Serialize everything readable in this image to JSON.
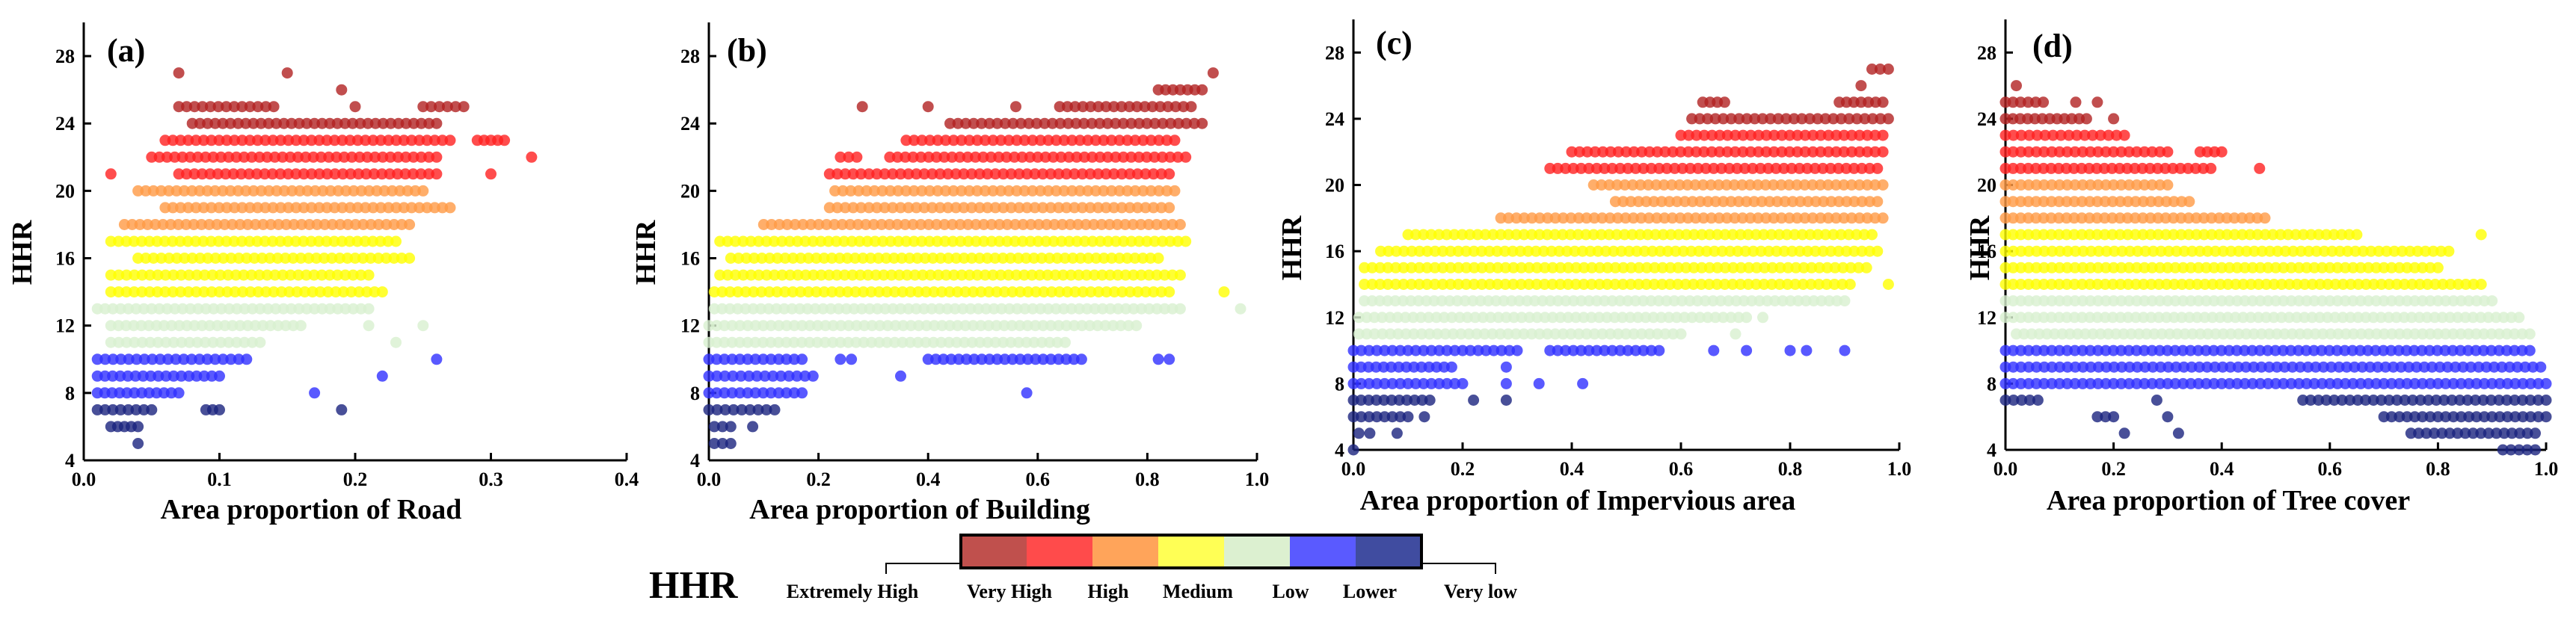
{
  "chart_data": [
    {
      "panel": "(a)",
      "type": "scatter",
      "xlabel": "Area proportion of Road",
      "ylabel": "HHR",
      "xlim": [
        0.0,
        0.4
      ],
      "ylim": [
        4,
        30
      ],
      "xticks": [
        "0.0",
        "0.1",
        "0.2",
        "0.3",
        "0.4"
      ],
      "yticks": [
        "4",
        "8",
        "12",
        "16",
        "20",
        "24",
        "28"
      ],
      "rows": [
        {
          "y": 27,
          "ranges": [
            [
              0.07,
              0.07
            ],
            [
              0.15,
              0.15
            ]
          ]
        },
        {
          "y": 26,
          "ranges": [
            [
              0.19,
              0.19
            ]
          ]
        },
        {
          "y": 25,
          "ranges": [
            [
              0.07,
              0.14
            ],
            [
              0.2,
              0.2
            ],
            [
              0.25,
              0.28
            ]
          ]
        },
        {
          "y": 24,
          "ranges": [
            [
              0.08,
              0.26
            ]
          ]
        },
        {
          "y": 23,
          "ranges": [
            [
              0.06,
              0.27
            ],
            [
              0.29,
              0.31
            ]
          ]
        },
        {
          "y": 22,
          "ranges": [
            [
              0.05,
              0.26
            ],
            [
              0.33,
              0.33
            ]
          ]
        },
        {
          "y": 21,
          "ranges": [
            [
              0.02,
              0.02
            ],
            [
              0.07,
              0.26
            ],
            [
              0.3,
              0.3
            ]
          ]
        },
        {
          "y": 20,
          "ranges": [
            [
              0.04,
              0.25
            ]
          ]
        },
        {
          "y": 19,
          "ranges": [
            [
              0.06,
              0.27
            ]
          ]
        },
        {
          "y": 18,
          "ranges": [
            [
              0.03,
              0.24
            ]
          ]
        },
        {
          "y": 17,
          "ranges": [
            [
              0.02,
              0.23
            ]
          ]
        },
        {
          "y": 16,
          "ranges": [
            [
              0.04,
              0.24
            ]
          ]
        },
        {
          "y": 15,
          "ranges": [
            [
              0.02,
              0.21
            ]
          ]
        },
        {
          "y": 14,
          "ranges": [
            [
              0.02,
              0.22
            ]
          ]
        },
        {
          "y": 13,
          "ranges": [
            [
              0.01,
              0.21
            ]
          ]
        },
        {
          "y": 12,
          "ranges": [
            [
              0.02,
              0.16
            ],
            [
              0.21,
              0.21
            ],
            [
              0.25,
              0.25
            ]
          ]
        },
        {
          "y": 11,
          "ranges": [
            [
              0.02,
              0.13
            ],
            [
              0.23,
              0.23
            ]
          ]
        },
        {
          "y": 10,
          "ranges": [
            [
              0.01,
              0.12
            ],
            [
              0.26,
              0.26
            ]
          ]
        },
        {
          "y": 9,
          "ranges": [
            [
              0.01,
              0.1
            ],
            [
              0.22,
              0.22
            ]
          ]
        },
        {
          "y": 8,
          "ranges": [
            [
              0.01,
              0.07
            ],
            [
              0.17,
              0.17
            ]
          ]
        },
        {
          "y": 7,
          "ranges": [
            [
              0.01,
              0.05
            ],
            [
              0.09,
              0.1
            ],
            [
              0.19,
              0.19
            ]
          ]
        },
        {
          "y": 6,
          "ranges": [
            [
              0.02,
              0.04
            ]
          ]
        },
        {
          "y": 5,
          "ranges": [
            [
              0.04,
              0.04
            ]
          ]
        }
      ]
    },
    {
      "panel": "(b)",
      "type": "scatter",
      "xlabel": "Area proportion of Building",
      "ylabel": "HHR",
      "xlim": [
        0.0,
        1.0
      ],
      "ylim": [
        4,
        30
      ],
      "xticks": [
        "0.0",
        "0.2",
        "0.4",
        "0.6",
        "0.8",
        "1.0"
      ],
      "yticks": [
        "4",
        "8",
        "12",
        "16",
        "20",
        "24",
        "28"
      ],
      "rows": [
        {
          "y": 27,
          "ranges": [
            [
              0.92,
              0.92
            ]
          ]
        },
        {
          "y": 26,
          "ranges": [
            [
              0.82,
              0.9
            ]
          ]
        },
        {
          "y": 25,
          "ranges": [
            [
              0.28,
              0.28
            ],
            [
              0.4,
              0.4
            ],
            [
              0.56,
              0.56
            ],
            [
              0.64,
              0.88
            ]
          ]
        },
        {
          "y": 24,
          "ranges": [
            [
              0.44,
              0.9
            ]
          ]
        },
        {
          "y": 23,
          "ranges": [
            [
              0.36,
              0.85
            ]
          ]
        },
        {
          "y": 22,
          "ranges": [
            [
              0.24,
              0.27
            ],
            [
              0.33,
              0.87
            ]
          ]
        },
        {
          "y": 21,
          "ranges": [
            [
              0.22,
              0.84
            ]
          ]
        },
        {
          "y": 20,
          "ranges": [
            [
              0.23,
              0.85
            ]
          ]
        },
        {
          "y": 19,
          "ranges": [
            [
              0.22,
              0.84
            ]
          ]
        },
        {
          "y": 18,
          "ranges": [
            [
              0.1,
              0.86
            ]
          ]
        },
        {
          "y": 17,
          "ranges": [
            [
              0.02,
              0.87
            ]
          ]
        },
        {
          "y": 16,
          "ranges": [
            [
              0.04,
              0.82
            ]
          ]
        },
        {
          "y": 15,
          "ranges": [
            [
              0.02,
              0.86
            ]
          ]
        },
        {
          "y": 14,
          "ranges": [
            [
              0.01,
              0.84
            ],
            [
              0.94,
              0.94
            ]
          ]
        },
        {
          "y": 13,
          "ranges": [
            [
              0.01,
              0.86
            ],
            [
              0.97,
              0.97
            ]
          ]
        },
        {
          "y": 12,
          "ranges": [
            [
              0.0,
              0.78
            ]
          ]
        },
        {
          "y": 11,
          "ranges": [
            [
              0.0,
              0.65
            ]
          ]
        },
        {
          "y": 10,
          "ranges": [
            [
              0.0,
              0.17
            ],
            [
              0.24,
              0.26
            ],
            [
              0.4,
              0.68
            ],
            [
              0.82,
              0.84
            ]
          ]
        },
        {
          "y": 9,
          "ranges": [
            [
              0.0,
              0.19
            ],
            [
              0.35,
              0.35
            ]
          ]
        },
        {
          "y": 8,
          "ranges": [
            [
              0.0,
              0.17
            ],
            [
              0.58,
              0.58
            ]
          ]
        },
        {
          "y": 7,
          "ranges": [
            [
              0.0,
              0.12
            ]
          ]
        },
        {
          "y": 6,
          "ranges": [
            [
              0.01,
              0.04
            ],
            [
              0.08,
              0.08
            ]
          ]
        },
        {
          "y": 5,
          "ranges": [
            [
              0.01,
              0.04
            ]
          ]
        }
      ]
    },
    {
      "panel": "(c)",
      "type": "scatter",
      "xlabel": "Area proportion of Impervious area",
      "ylabel": "HHR",
      "xlim": [
        0.0,
        1.0
      ],
      "ylim": [
        4,
        30
      ],
      "xticks": [
        "0.0",
        "0.2",
        "0.4",
        "0.6",
        "0.8",
        "1.0"
      ],
      "yticks": [
        "4",
        "8",
        "12",
        "16",
        "20",
        "24",
        "28"
      ],
      "rows": [
        {
          "y": 27,
          "ranges": [
            [
              0.95,
              0.98
            ]
          ]
        },
        {
          "y": 26,
          "ranges": [
            [
              0.93,
              0.93
            ]
          ]
        },
        {
          "y": 25,
          "ranges": [
            [
              0.64,
              0.68
            ],
            [
              0.89,
              0.97
            ]
          ]
        },
        {
          "y": 24,
          "ranges": [
            [
              0.62,
              0.98
            ]
          ]
        },
        {
          "y": 23,
          "ranges": [
            [
              0.6,
              0.97
            ]
          ]
        },
        {
          "y": 22,
          "ranges": [
            [
              0.4,
              0.97
            ]
          ]
        },
        {
          "y": 21,
          "ranges": [
            [
              0.36,
              0.96
            ]
          ]
        },
        {
          "y": 20,
          "ranges": [
            [
              0.44,
              0.97
            ]
          ]
        },
        {
          "y": 19,
          "ranges": [
            [
              0.48,
              0.96
            ]
          ]
        },
        {
          "y": 18,
          "ranges": [
            [
              0.27,
              0.97
            ]
          ]
        },
        {
          "y": 17,
          "ranges": [
            [
              0.1,
              0.95
            ]
          ]
        },
        {
          "y": 16,
          "ranges": [
            [
              0.05,
              0.96
            ]
          ]
        },
        {
          "y": 15,
          "ranges": [
            [
              0.02,
              0.94
            ]
          ]
        },
        {
          "y": 14,
          "ranges": [
            [
              0.02,
              0.91
            ],
            [
              0.98,
              0.98
            ]
          ]
        },
        {
          "y": 13,
          "ranges": [
            [
              0.02,
              0.9
            ]
          ]
        },
        {
          "y": 12,
          "ranges": [
            [
              0.01,
              0.72
            ],
            [
              0.75,
              0.75
            ]
          ]
        },
        {
          "y": 11,
          "ranges": [
            [
              0.01,
              0.6
            ],
            [
              0.7,
              0.7
            ]
          ]
        },
        {
          "y": 10,
          "ranges": [
            [
              0.0,
              0.3
            ],
            [
              0.36,
              0.56
            ],
            [
              0.66,
              0.66
            ],
            [
              0.72,
              0.72
            ],
            [
              0.8,
              0.8
            ],
            [
              0.83,
              0.83
            ],
            [
              0.9,
              0.9
            ]
          ]
        },
        {
          "y": 9,
          "ranges": [
            [
              0.0,
              0.18
            ],
            [
              0.28,
              0.28
            ]
          ]
        },
        {
          "y": 8,
          "ranges": [
            [
              0.0,
              0.2
            ],
            [
              0.28,
              0.28
            ],
            [
              0.34,
              0.34
            ],
            [
              0.42,
              0.42
            ]
          ]
        },
        {
          "y": 7,
          "ranges": [
            [
              0.0,
              0.14
            ],
            [
              0.22,
              0.22
            ],
            [
              0.28,
              0.28
            ]
          ]
        },
        {
          "y": 6,
          "ranges": [
            [
              0.0,
              0.1
            ],
            [
              0.13,
              0.13
            ]
          ]
        },
        {
          "y": 5,
          "ranges": [
            [
              0.01,
              0.03
            ],
            [
              0.08,
              0.08
            ]
          ]
        },
        {
          "y": 4,
          "ranges": [
            [
              0.0,
              0.0
            ]
          ]
        }
      ]
    },
    {
      "panel": "(d)",
      "type": "scatter",
      "xlabel": "Area proportion of Tree cover",
      "ylabel": "HHR",
      "xlim": [
        0.0,
        1.0
      ],
      "ylim": [
        4,
        30
      ],
      "xticks": [
        "0.0",
        "0.2",
        "0.4",
        "0.6",
        "0.8",
        "1.0"
      ],
      "yticks": [
        "4",
        "8",
        "12",
        "16",
        "20",
        "24",
        "28"
      ],
      "rows": [
        {
          "y": 26,
          "ranges": [
            [
              0.02,
              0.02
            ]
          ]
        },
        {
          "y": 25,
          "ranges": [
            [
              0.0,
              0.07
            ],
            [
              0.13,
              0.13
            ],
            [
              0.17,
              0.17
            ]
          ]
        },
        {
          "y": 24,
          "ranges": [
            [
              0.0,
              0.15
            ],
            [
              0.2,
              0.2
            ]
          ]
        },
        {
          "y": 23,
          "ranges": [
            [
              0.0,
              0.22
            ]
          ]
        },
        {
          "y": 22,
          "ranges": [
            [
              0.0,
              0.3
            ],
            [
              0.36,
              0.4
            ]
          ]
        },
        {
          "y": 21,
          "ranges": [
            [
              0.0,
              0.38
            ],
            [
              0.47,
              0.47
            ]
          ]
        },
        {
          "y": 20,
          "ranges": [
            [
              0.0,
              0.3
            ]
          ]
        },
        {
          "y": 19,
          "ranges": [
            [
              0.0,
              0.34
            ]
          ]
        },
        {
          "y": 18,
          "ranges": [
            [
              0.0,
              0.48
            ]
          ]
        },
        {
          "y": 17,
          "ranges": [
            [
              0.0,
              0.65
            ],
            [
              0.88,
              0.88
            ]
          ]
        },
        {
          "y": 16,
          "ranges": [
            [
              0.0,
              0.82
            ]
          ]
        },
        {
          "y": 15,
          "ranges": [
            [
              0.0,
              0.8
            ]
          ]
        },
        {
          "y": 14,
          "ranges": [
            [
              0.0,
              0.88
            ]
          ]
        },
        {
          "y": 13,
          "ranges": [
            [
              0.0,
              0.9
            ]
          ]
        },
        {
          "y": 12,
          "ranges": [
            [
              0.0,
              0.95
            ]
          ]
        },
        {
          "y": 11,
          "ranges": [
            [
              0.02,
              0.97
            ]
          ]
        },
        {
          "y": 10,
          "ranges": [
            [
              0.0,
              0.97
            ]
          ]
        },
        {
          "y": 9,
          "ranges": [
            [
              0.0,
              0.99
            ]
          ]
        },
        {
          "y": 8,
          "ranges": [
            [
              0.0,
              1.0
            ]
          ]
        },
        {
          "y": 7,
          "ranges": [
            [
              0.0,
              0.06
            ],
            [
              0.28,
              0.28
            ],
            [
              0.55,
              1.0
            ]
          ]
        },
        {
          "y": 6,
          "ranges": [
            [
              0.17,
              0.2
            ],
            [
              0.3,
              0.3
            ],
            [
              0.7,
              1.0
            ]
          ]
        },
        {
          "y": 5,
          "ranges": [
            [
              0.22,
              0.22
            ],
            [
              0.32,
              0.32
            ],
            [
              0.75,
              0.98
            ]
          ]
        },
        {
          "y": 4,
          "ranges": [
            [
              0.92,
              0.98
            ]
          ]
        }
      ]
    }
  ],
  "legend": {
    "title": "HHR",
    "labels": [
      "Extremely High",
      "Very High",
      "High",
      "Medium",
      "Low",
      "Lower",
      "Very low"
    ],
    "colors": [
      "#c0504d",
      "#ff4b4b",
      "#ffa45a",
      "#ffff55",
      "#dcf0d0",
      "#5a5aff",
      "#404ca0"
    ]
  },
  "level_colors": [
    {
      "min": 24,
      "color": "#b22222"
    },
    {
      "min": 21,
      "color": "#ff2020"
    },
    {
      "min": 18,
      "color": "#ff9a45"
    },
    {
      "min": 14,
      "color": "#ffff00"
    },
    {
      "min": 11,
      "color": "#d8f0d0"
    },
    {
      "min": 8,
      "color": "#3030ff"
    },
    {
      "min": 0,
      "color": "#1a237e"
    }
  ]
}
